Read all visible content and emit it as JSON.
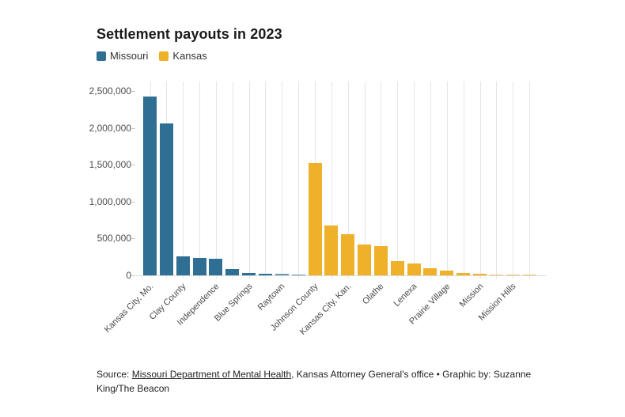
{
  "title": "Settlement payouts in 2023",
  "legend": [
    {
      "label": "Missouri",
      "color": "#2e6f93"
    },
    {
      "label": "Kansas",
      "color": "#eeb129"
    }
  ],
  "colors": {
    "missouri_blue": "#2e6f93",
    "kansas_yellow": "#eeb129",
    "grid": "#e5e5e5",
    "axis_text": "#4d4d4d",
    "title_text": "#1a1a1a"
  },
  "chart_data": {
    "type": "bar",
    "title": "Settlement payouts in 2023",
    "xlabel": "",
    "ylabel": "",
    "ylim": [
      0,
      2500000
    ],
    "yticks": [
      0,
      500000,
      1000000,
      1500000,
      2000000,
      2500000
    ],
    "ytick_labels": [
      "0",
      "500,000",
      "1,000,000",
      "1,500,000",
      "2,000,000",
      "2,500,000"
    ],
    "grid": "vertical-only",
    "legend_position": "top-left",
    "note": "only every second bar carries a visible category label",
    "categories": [
      "Kansas City, Mo.",
      "",
      "Clay County",
      "",
      "Independence",
      "",
      "Blue Springs",
      "",
      "Raytown",
      "",
      "Johnson County",
      "",
      "Kansas City, Kan.",
      "",
      "Olathe",
      "",
      "Lenexa",
      "",
      "Prairie Village",
      "",
      "Mission",
      "",
      "Mission Hills",
      ""
    ],
    "values": [
      2430000,
      2060000,
      255000,
      235000,
      220000,
      85000,
      28000,
      24000,
      20000,
      13000,
      1525000,
      675000,
      560000,
      420000,
      395000,
      195000,
      160000,
      95000,
      65000,
      33000,
      26000,
      16000,
      9000,
      4000
    ],
    "groups": [
      "Missouri",
      "Missouri",
      "Missouri",
      "Missouri",
      "Missouri",
      "Missouri",
      "Missouri",
      "Missouri",
      "Missouri",
      "Missouri",
      "Kansas",
      "Kansas",
      "Kansas",
      "Kansas",
      "Kansas",
      "Kansas",
      "Kansas",
      "Kansas",
      "Kansas",
      "Kansas",
      "Kansas",
      "Kansas",
      "Kansas",
      "Kansas"
    ]
  },
  "source": {
    "prefix": "Source: ",
    "link": "Missouri Department of Mental Health",
    "rest": ", Kansas Attorney General's office • Graphic by: Suzanne King/The Beacon"
  }
}
